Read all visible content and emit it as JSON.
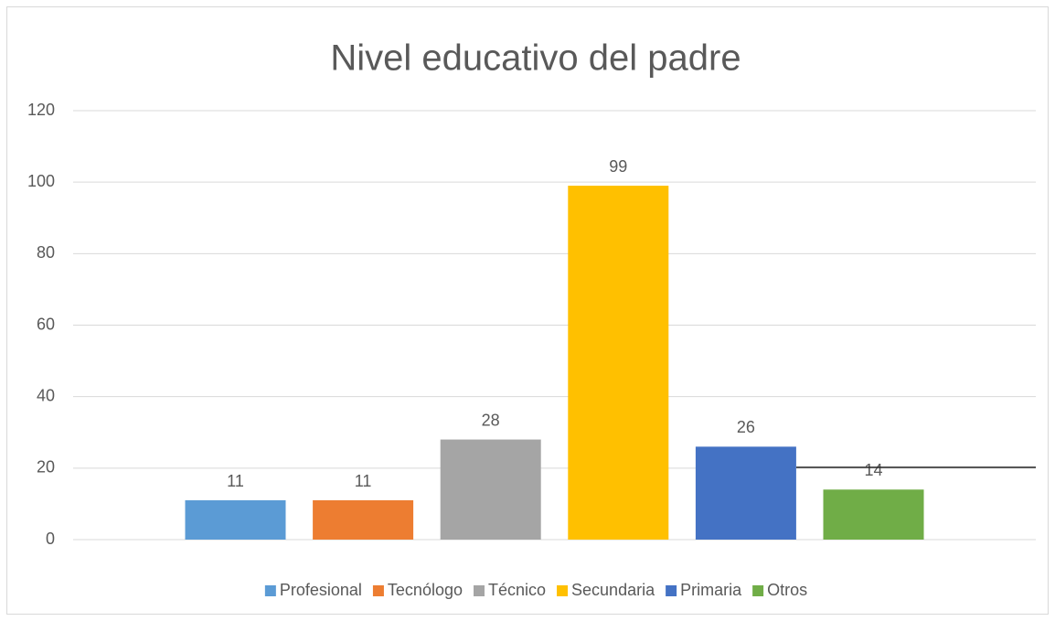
{
  "chart_data": {
    "type": "bar",
    "title": "Nivel educativo del padre",
    "categories": [
      null
    ],
    "series": [
      {
        "name": "Profesional",
        "color": "#5b9bd5",
        "values": [
          11
        ]
      },
      {
        "name": "Tecnólogo",
        "color": "#ed7d31",
        "values": [
          11
        ]
      },
      {
        "name": "Técnico",
        "color": "#a5a5a5",
        "values": [
          28
        ]
      },
      {
        "name": "Secundaria",
        "color": "#ffc000",
        "values": [
          99
        ]
      },
      {
        "name": "Primaria",
        "color": "#4472c4",
        "values": [
          26
        ]
      },
      {
        "name": "Otros",
        "color": "#70ad47",
        "values": [
          14
        ]
      }
    ],
    "ylim": [
      0,
      120
    ],
    "yticks": [
      0,
      20,
      40,
      60,
      80,
      100,
      120
    ],
    "grid": true,
    "legend": "bottom"
  }
}
